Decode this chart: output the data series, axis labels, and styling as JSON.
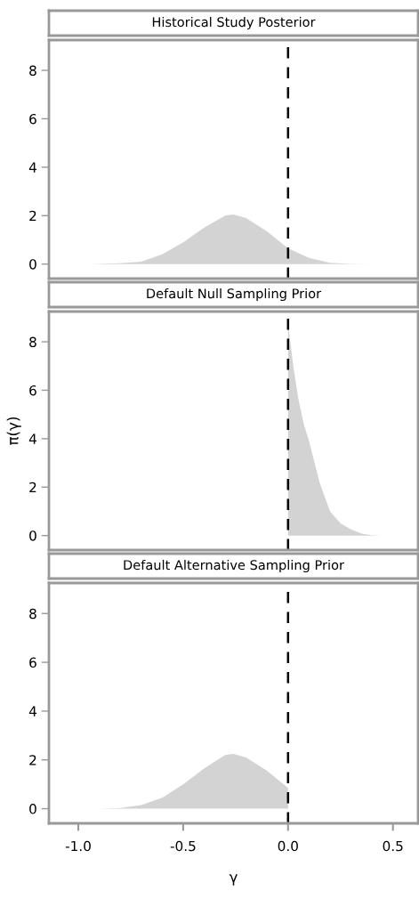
{
  "chart_data": [
    {
      "type": "area",
      "title": "Historical Study Posterior",
      "xlim": [
        -1.14,
        0.62
      ],
      "ylim": [
        -0.6,
        9.25
      ],
      "yticks": [
        0,
        2,
        4,
        6,
        8
      ],
      "tick_labels": "y",
      "grid": false,
      "legend": false,
      "series": [
        {
          "color": "#d3d3d3",
          "x": [
            -0.95,
            -0.8,
            -0.7,
            -0.6,
            -0.5,
            -0.4,
            -0.3,
            -0.26,
            -0.2,
            -0.1,
            0.0,
            0.1,
            0.2,
            0.3,
            0.4
          ],
          "values": [
            0,
            0.03,
            0.1,
            0.4,
            0.9,
            1.5,
            2.0,
            2.05,
            1.9,
            1.35,
            0.65,
            0.25,
            0.05,
            0.01,
            0
          ]
        }
      ],
      "ref_lines": [
        {
          "axis": "x",
          "value": 0,
          "color": "#000000",
          "line_style": "dashed"
        }
      ]
    },
    {
      "type": "area",
      "title": "Default Null Sampling Prior",
      "ylabel": "π(γ)",
      "xlim": [
        -1.14,
        0.62
      ],
      "ylim": [
        -0.6,
        9.25
      ],
      "yticks": [
        0,
        2,
        4,
        6,
        8
      ],
      "tick_labels": "y",
      "grid": false,
      "legend": false,
      "series": [
        {
          "color": "#d3d3d3",
          "x": [
            0.0,
            0.025,
            0.05,
            0.075,
            0.1,
            0.15,
            0.2,
            0.25,
            0.3,
            0.35,
            0.4,
            0.45
          ],
          "values": [
            8.75,
            7.0,
            5.6,
            4.6,
            3.9,
            2.2,
            1.0,
            0.5,
            0.25,
            0.08,
            0.02,
            0
          ]
        }
      ],
      "ref_lines": [
        {
          "axis": "x",
          "value": 0,
          "color": "#000000",
          "line_style": "dashed"
        }
      ]
    },
    {
      "type": "area",
      "title": "Default Alternative Sampling Prior",
      "xlabel": "γ",
      "xlim": [
        -1.14,
        0.62
      ],
      "ylim": [
        -0.6,
        9.25
      ],
      "xticks": [
        {
          "value": -1.0,
          "label": "-1.0"
        },
        {
          "value": -0.5,
          "label": "-0.5"
        },
        {
          "value": 0.0,
          "label": "0.0"
        },
        {
          "value": 0.5,
          "label": "0.5"
        }
      ],
      "yticks": [
        0,
        2,
        4,
        6,
        8
      ],
      "grid": false,
      "legend": false,
      "series": [
        {
          "color": "#d3d3d3",
          "x": [
            -0.9,
            -0.8,
            -0.7,
            -0.6,
            -0.5,
            -0.4,
            -0.3,
            -0.26,
            -0.2,
            -0.1,
            0.0
          ],
          "values": [
            0,
            0.03,
            0.15,
            0.45,
            1.0,
            1.65,
            2.2,
            2.25,
            2.1,
            1.55,
            0.85
          ]
        }
      ],
      "ref_lines": [
        {
          "axis": "x",
          "value": 0,
          "color": "#000000",
          "line_style": "dashed"
        }
      ]
    }
  ]
}
